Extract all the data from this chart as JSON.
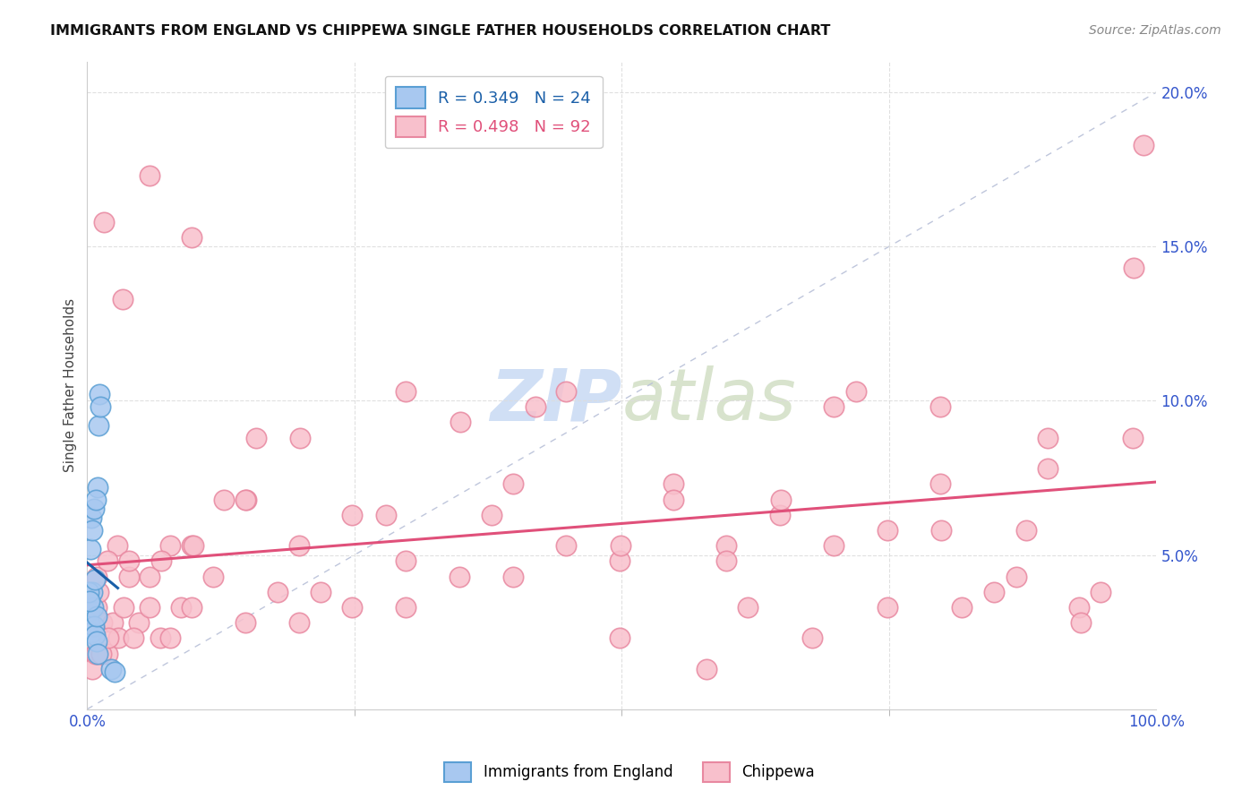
{
  "title": "IMMIGRANTS FROM ENGLAND VS CHIPPEWA SINGLE FATHER HOUSEHOLDS CORRELATION CHART",
  "source": "Source: ZipAtlas.com",
  "ylabel": "Single Father Households",
  "legend_entries": [
    {
      "label": "Immigrants from England",
      "R": "0.349",
      "N": "24",
      "color": "#6baed6"
    },
    {
      "label": "Chippewa",
      "R": "0.498",
      "N": "92",
      "color": "#f4a0b0"
    }
  ],
  "england_x": [
    0.15,
    0.25,
    0.35,
    0.45,
    0.55,
    0.65,
    0.75,
    0.85,
    0.95,
    1.05,
    1.15,
    1.25,
    0.1,
    0.2,
    0.3,
    0.4,
    0.5,
    0.6,
    0.7,
    0.8,
    0.9,
    1.0,
    2.2,
    2.6
  ],
  "england_y": [
    2.8,
    3.2,
    2.5,
    3.8,
    3.3,
    2.7,
    2.4,
    3.0,
    7.2,
    9.2,
    10.2,
    9.8,
    3.8,
    3.5,
    5.2,
    6.2,
    5.8,
    6.5,
    4.2,
    6.8,
    2.2,
    1.8,
    1.3,
    1.2
  ],
  "chippewa_x": [
    0.4,
    0.7,
    0.9,
    1.1,
    1.4,
    1.9,
    2.4,
    2.9,
    3.4,
    3.9,
    4.8,
    5.8,
    6.8,
    7.8,
    8.8,
    9.8,
    11.8,
    14.8,
    17.8,
    19.8,
    24.8,
    29.8,
    34.8,
    39.8,
    44.8,
    49.8,
    54.8,
    59.8,
    64.8,
    69.8,
    74.8,
    79.8,
    84.8,
    89.8,
    94.8,
    97.8,
    0.2,
    0.5,
    0.8,
    1.3,
    2.0,
    2.8,
    4.3,
    5.8,
    7.8,
    9.8,
    12.8,
    15.8,
    19.8,
    24.8,
    29.8,
    37.8,
    44.8,
    54.8,
    61.8,
    67.8,
    74.8,
    81.8,
    87.8,
    92.8,
    0.9,
    1.9,
    3.9,
    6.9,
    9.9,
    14.9,
    19.9,
    27.9,
    34.9,
    41.9,
    49.9,
    57.9,
    64.9,
    71.9,
    79.9,
    86.9,
    92.9,
    97.9,
    1.6,
    3.3,
    5.8,
    9.8,
    14.8,
    21.8,
    29.8,
    39.8,
    49.8,
    59.8,
    69.8,
    79.8,
    89.8,
    98.8
  ],
  "chippewa_y": [
    3.3,
    1.8,
    3.3,
    3.8,
    2.8,
    1.8,
    2.8,
    2.3,
    3.3,
    4.3,
    2.8,
    3.3,
    2.3,
    2.3,
    3.3,
    3.3,
    4.3,
    2.8,
    3.8,
    2.8,
    3.3,
    4.8,
    4.3,
    4.3,
    5.3,
    4.8,
    7.3,
    5.3,
    6.3,
    5.3,
    5.8,
    7.3,
    3.8,
    7.8,
    3.8,
    8.8,
    2.8,
    1.3,
    1.8,
    1.8,
    2.3,
    5.3,
    2.3,
    4.3,
    5.3,
    5.3,
    6.8,
    8.8,
    5.3,
    6.3,
    10.3,
    6.3,
    10.3,
    6.8,
    3.3,
    2.3,
    3.3,
    3.3,
    5.8,
    3.3,
    4.3,
    4.8,
    4.8,
    4.8,
    5.3,
    6.8,
    8.8,
    6.3,
    9.3,
    9.8,
    5.3,
    1.3,
    6.8,
    10.3,
    5.8,
    4.3,
    2.8,
    14.3,
    15.8,
    13.3,
    17.3,
    15.3,
    6.8,
    3.8,
    3.3,
    7.3,
    2.3,
    4.8,
    9.8,
    9.8,
    8.8,
    18.3
  ],
  "background_color": "#ffffff",
  "grid_color": "#dddddd",
  "england_dot_color": "#a8c8f0",
  "england_edge_color": "#5a9fd4",
  "england_line_color": "#1a5fa8",
  "chippewa_dot_color": "#f8c0cc",
  "chippewa_edge_color": "#e888a0",
  "chippewa_line_color": "#e0507a",
  "diagonal_color": "#b8c0d8",
  "watermark_color": "#d0dff5",
  "xlim": [
    0,
    100
  ],
  "ylim": [
    0,
    21
  ],
  "ytick_vals": [
    5,
    10,
    15,
    20
  ],
  "ytick_labels": [
    "5.0%",
    "10.0%",
    "15.0%",
    "20.0%"
  ],
  "xtick_vals": [
    0,
    100
  ],
  "xtick_labels": [
    "0.0%",
    "100.0%"
  ]
}
